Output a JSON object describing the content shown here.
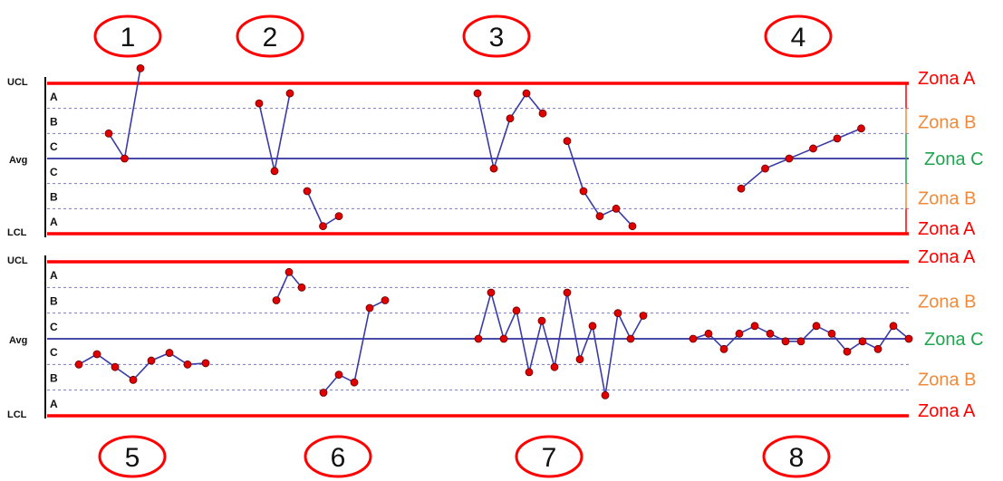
{
  "rules": [
    "1",
    "2",
    "3",
    "4",
    "5",
    "6",
    "7",
    "8"
  ],
  "axis_labels": {
    "ucl": "UCL",
    "avg": "Avg",
    "lcl": "LCL"
  },
  "zone_letters": [
    "A",
    "B",
    "C",
    "C",
    "B",
    "A"
  ],
  "zones": {
    "a": "Zona A",
    "b": "Zona B",
    "c": "Zona C"
  },
  "colors": {
    "limit": "#ff0000",
    "center": "#4a4aa8",
    "dash": "#7a7ab8",
    "series": "#3b3ba8",
    "point": "#e00000",
    "zone_a": "#ff0000",
    "zone_b": "#f08a3a",
    "zone_c": "#1ea64e"
  },
  "chart_data": [
    {
      "type": "line",
      "title": "",
      "ylim": [
        -3,
        3
      ],
      "series": [
        {
          "values": [
            [
              0,
              1
            ],
            [
              1,
              0
            ],
            [
              2,
              3.6
            ]
          ]
        },
        {
          "values": [
            [
              0,
              2.2
            ],
            [
              1,
              -0.5
            ],
            [
              2,
              2.6
            ]
          ]
        },
        {
          "values": [
            [
              0,
              -1.3
            ],
            [
              1,
              -2.7
            ],
            [
              2,
              -2.3
            ]
          ]
        },
        {
          "values": [
            [
              0,
              2.6
            ],
            [
              1,
              -0.4
            ],
            [
              2,
              1.6
            ],
            [
              3,
              2.6
            ],
            [
              4,
              1.8
            ]
          ]
        },
        {
          "values": [
            [
              0,
              0.7
            ],
            [
              1,
              -1.3
            ],
            [
              2,
              -2.3
            ],
            [
              3,
              -2
            ],
            [
              4,
              -2.7
            ]
          ]
        },
        {
          "values": [
            [
              0,
              -1.2
            ],
            [
              1,
              -0.4
            ],
            [
              2,
              0
            ],
            [
              3,
              0.4
            ],
            [
              4,
              0.8
            ],
            [
              5,
              1.2
            ]
          ]
        }
      ]
    },
    {
      "type": "line",
      "title": "",
      "ylim": [
        -3,
        3
      ],
      "series": [
        {
          "values": [
            [
              0,
              -1
            ],
            [
              1,
              -0.6
            ],
            [
              2,
              -1.1
            ],
            [
              3,
              -1.6
            ],
            [
              4,
              -0.85
            ],
            [
              5,
              -0.55
            ],
            [
              6,
              -1
            ],
            [
              7,
              -0.95
            ]
          ]
        },
        {
          "values": [
            [
              0,
              1.5
            ],
            [
              1,
              2.6
            ],
            [
              2,
              2
            ]
          ]
        },
        {
          "values": [
            [
              0,
              -2.1
            ],
            [
              1,
              -1.4
            ],
            [
              2,
              -1.7
            ],
            [
              3,
              1.2
            ],
            [
              4,
              1.5
            ]
          ]
        },
        {
          "values": [
            [
              0,
              0
            ],
            [
              1,
              1.8
            ],
            [
              2,
              0
            ],
            [
              3,
              1.1
            ],
            [
              4,
              -1.3
            ],
            [
              5,
              0.7
            ],
            [
              6,
              -1.1
            ],
            [
              7,
              1.8
            ],
            [
              8,
              -0.8
            ],
            [
              9,
              0.5
            ],
            [
              10,
              -2.2
            ],
            [
              11,
              1
            ],
            [
              12,
              0
            ],
            [
              13,
              0.9
            ]
          ]
        },
        {
          "values": [
            [
              0,
              0
            ],
            [
              1,
              0.2
            ],
            [
              2,
              -0.4
            ],
            [
              3,
              0.2
            ],
            [
              4,
              0.5
            ],
            [
              5,
              0.2
            ],
            [
              6,
              -0.1
            ],
            [
              7,
              -0.1
            ],
            [
              8,
              0.5
            ],
            [
              9,
              0.2
            ],
            [
              10,
              -0.5
            ],
            [
              11,
              -0.1
            ],
            [
              12,
              -0.4
            ],
            [
              13,
              0.5
            ],
            [
              14,
              0
            ]
          ]
        }
      ]
    }
  ]
}
